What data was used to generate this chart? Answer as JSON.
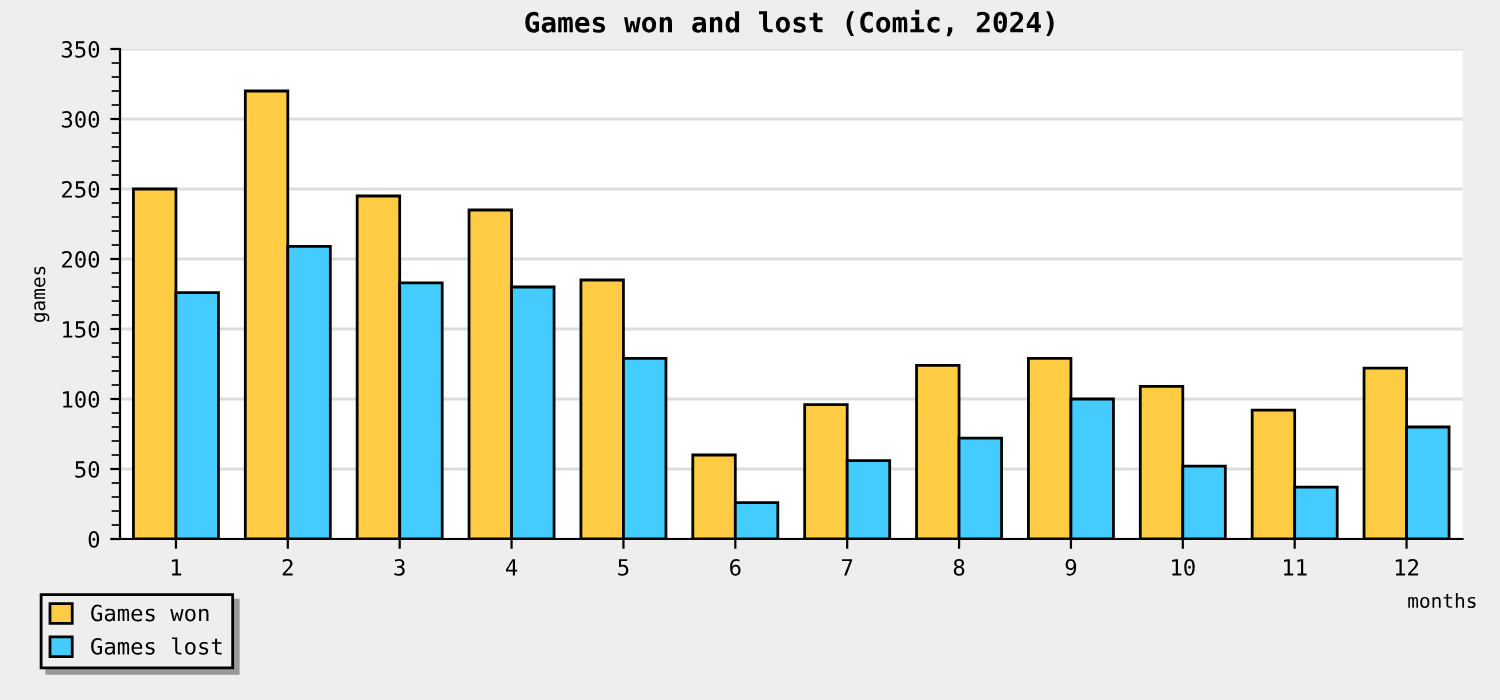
{
  "chart_data": {
    "type": "bar",
    "title": "Games won and lost (Comic, 2024)",
    "xlabel": "months",
    "ylabel": "games",
    "categories": [
      "1",
      "2",
      "3",
      "4",
      "5",
      "6",
      "7",
      "8",
      "9",
      "10",
      "11",
      "12"
    ],
    "series": [
      {
        "name": "Games won",
        "color": "#ffcc44",
        "values": [
          250,
          320,
          245,
          235,
          185,
          60,
          96,
          124,
          129,
          109,
          92,
          122
        ]
      },
      {
        "name": "Games lost",
        "color": "#44ccff",
        "values": [
          176,
          209,
          183,
          180,
          129,
          26,
          56,
          72,
          100,
          52,
          37,
          80
        ]
      }
    ],
    "ylim": [
      0,
      350
    ],
    "yticks": [
      0,
      50,
      100,
      150,
      200,
      250,
      300,
      350
    ],
    "grid": "y",
    "legend": "bottom left"
  }
}
